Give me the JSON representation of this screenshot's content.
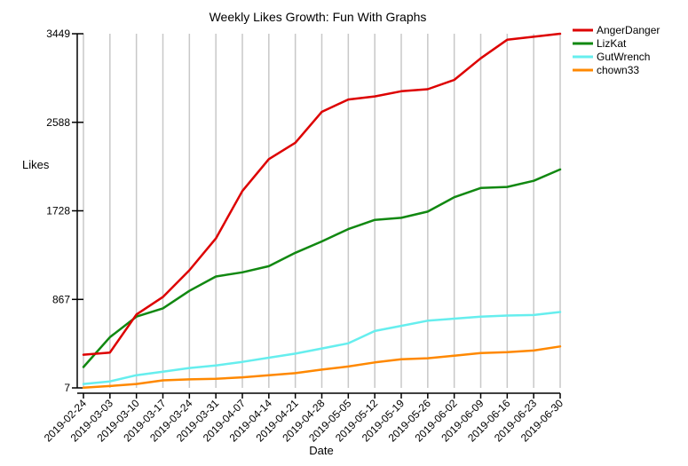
{
  "chart_data": {
    "type": "line",
    "title": "Weekly Likes Growth: Fun With Graphs",
    "xlabel": "Date",
    "ylabel": "Likes",
    "x": [
      "2019-02-24",
      "2019-03-03",
      "2019-03-10",
      "2019-03-17",
      "2019-03-24",
      "2019-03-31",
      "2019-04-07",
      "2019-04-14",
      "2019-04-21",
      "2019-04-28",
      "2019-05-05",
      "2019-05-12",
      "2019-05-19",
      "2019-05-26",
      "2019-06-02",
      "2019-06-09",
      "2019-06-16",
      "2019-06-23",
      "2019-06-30"
    ],
    "yticks": [
      7,
      867,
      1728,
      2588,
      3449
    ],
    "ylim": [
      7,
      3449
    ],
    "grid": "vertical",
    "legend_position": "top-right",
    "series": [
      {
        "name": "AngerDanger",
        "color": "#dd0000",
        "values": [
          330,
          350,
          720,
          890,
          1150,
          1460,
          1920,
          2230,
          2390,
          2690,
          2810,
          2840,
          2890,
          2910,
          3000,
          3210,
          3390,
          3420,
          3449
        ]
      },
      {
        "name": "LizKat",
        "color": "#118811",
        "values": [
          210,
          500,
          700,
          780,
          950,
          1090,
          1130,
          1190,
          1320,
          1430,
          1550,
          1640,
          1660,
          1720,
          1860,
          1950,
          1960,
          2020,
          2130
        ]
      },
      {
        "name": "GutWrench",
        "color": "#66eeee",
        "values": [
          45,
          70,
          130,
          165,
          200,
          225,
          260,
          300,
          340,
          390,
          440,
          560,
          610,
          660,
          680,
          700,
          710,
          715,
          745
        ]
      },
      {
        "name": "chown33",
        "color": "#ff8800",
        "values": [
          10,
          25,
          45,
          80,
          90,
          95,
          110,
          130,
          150,
          185,
          215,
          255,
          285,
          295,
          320,
          345,
          355,
          370,
          410
        ]
      }
    ]
  }
}
